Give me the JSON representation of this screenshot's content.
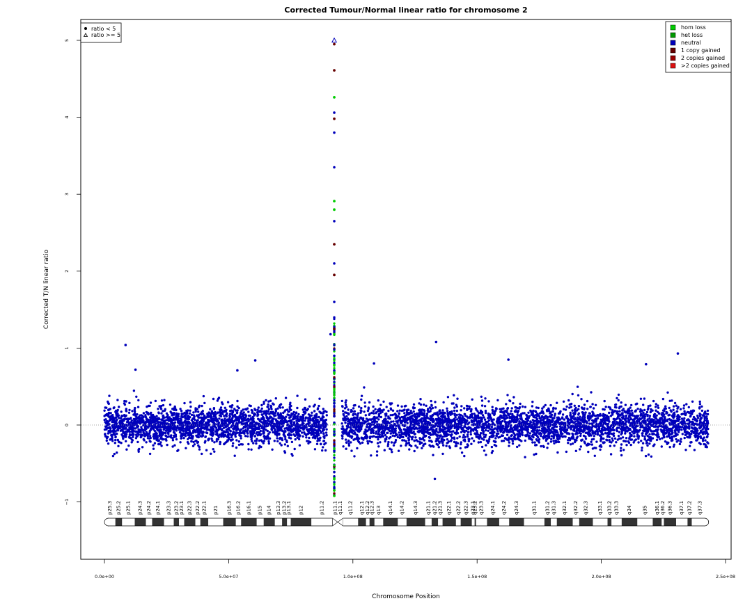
{
  "chart_data": {
    "type": "scatter",
    "title": "Corrected Tumour/Normal linear ratio for chromosome  2",
    "xlabel": "Chromosome Position",
    "ylabel": "Corrected T/N linear ratio",
    "xlim": [
      0,
      250000000
    ],
    "ylim": [
      -1.75,
      5.25
    ],
    "x_ticks": [
      0,
      50000000,
      100000000,
      150000000,
      200000000,
      250000000
    ],
    "x_tick_labels": [
      "0.0e+00",
      "5.0e+07",
      "1.0e+08",
      "1.5e+08",
      "2.0e+08",
      "2.5e+08"
    ],
    "y_ticks": [
      -1,
      0,
      1,
      2,
      3,
      4,
      5
    ],
    "y_tick_labels": [
      "−1",
      "0",
      "1",
      "2",
      "3",
      "4",
      "5"
    ],
    "reference_line_y": 0,
    "shape_legend": {
      "position": "top-left",
      "entries": [
        {
          "label": "ratio < 5",
          "symbol": "filled-circle"
        },
        {
          "label": "ratio >= 5",
          "symbol": "open-triangle"
        }
      ]
    },
    "color_legend": {
      "position": "top-right",
      "entries": [
        {
          "label": "hom loss",
          "color": "#00cc00"
        },
        {
          "label": "het loss",
          "color": "#009900"
        },
        {
          "label": "neutral",
          "color": "#0000bb"
        },
        {
          "label": "1 copy gained",
          "color": "#660000"
        },
        {
          "label": "2 copies gained",
          "color": "#990000"
        },
        {
          "label": ">2 copies gained",
          "color": "#dd1111"
        }
      ]
    },
    "series": [
      {
        "name": "neutral",
        "color": "#0000bb",
        "description_range": {
          "x": [
            0,
            243000000
          ],
          "y_core": [
            -0.35,
            0.4
          ],
          "y_extremes": [
            -0.7,
            1.09
          ]
        },
        "outliers": [
          {
            "x": 8500000,
            "y": 1.04
          },
          {
            "x": 133500000,
            "y": 1.08
          },
          {
            "x": 230800000,
            "y": 0.93
          },
          {
            "x": 60700000,
            "y": 0.84
          },
          {
            "x": 162600000,
            "y": 0.85
          },
          {
            "x": 53500000,
            "y": 0.71
          },
          {
            "x": 12500000,
            "y": 0.72
          },
          {
            "x": 108500000,
            "y": 0.8
          },
          {
            "x": 133000000,
            "y": -0.7
          },
          {
            "x": 218000000,
            "y": 0.79
          },
          {
            "x": 91000000,
            "y": 1.18
          },
          {
            "x": 92500000,
            "y": 4.06
          },
          {
            "x": 92500000,
            "y": 3.8
          },
          {
            "x": 92500000,
            "y": 3.35
          },
          {
            "x": 92500000,
            "y": 2.65
          },
          {
            "x": 92500000,
            "y": 2.1
          },
          {
            "x": 92500000,
            "y": 1.6
          },
          {
            "x": 92500000,
            "y": 0.9
          }
        ]
      },
      {
        "name": "hom loss",
        "color": "#00cc00",
        "points": [
          {
            "x": 92500000,
            "y": 4.26
          },
          {
            "x": 92500000,
            "y": 2.91
          },
          {
            "x": 92500000,
            "y": 2.8
          },
          {
            "x": 92500000,
            "y": -0.92
          },
          {
            "x": 92500000,
            "y": -0.85
          },
          {
            "x": 92500000,
            "y": -0.7
          }
        ]
      },
      {
        "name": "1 copy gained",
        "color": "#660000",
        "points": [
          {
            "x": 92500000,
            "y": 4.95
          },
          {
            "x": 92500000,
            "y": 4.61
          },
          {
            "x": 92500000,
            "y": 3.98
          },
          {
            "x": 92500000,
            "y": 2.35
          },
          {
            "x": 92500000,
            "y": 1.95
          },
          {
            "x": 92500000,
            "y": 1.25
          }
        ]
      },
      {
        "name": "ratio >= 5",
        "color": "#0000bb",
        "marker": "open-triangle",
        "points": [
          {
            "x": 92500000,
            "y": 5.0
          }
        ]
      }
    ],
    "ideogram": {
      "chromosome": "2",
      "bands": [
        {
          "name": "p25.3",
          "start": 0,
          "end": 4400000,
          "stain": "gneg"
        },
        {
          "name": "p25.2",
          "start": 4400000,
          "end": 7100000,
          "stain": "gpos"
        },
        {
          "name": "p25.1",
          "start": 7100000,
          "end": 12200000,
          "stain": "gneg"
        },
        {
          "name": "p24.3",
          "start": 12200000,
          "end": 16700000,
          "stain": "gpos"
        },
        {
          "name": "p24.2",
          "start": 16700000,
          "end": 19200000,
          "stain": "gneg"
        },
        {
          "name": "p24.1",
          "start": 19200000,
          "end": 24000000,
          "stain": "gpos"
        },
        {
          "name": "p23.3",
          "start": 24000000,
          "end": 27900000,
          "stain": "gneg"
        },
        {
          "name": "p23.2",
          "start": 27900000,
          "end": 30000000,
          "stain": "gpos"
        },
        {
          "name": "p23.1",
          "start": 30000000,
          "end": 32100000,
          "stain": "gneg"
        },
        {
          "name": "p22.3",
          "start": 32100000,
          "end": 36600000,
          "stain": "gpos"
        },
        {
          "name": "p22.2",
          "start": 36600000,
          "end": 38600000,
          "stain": "gneg"
        },
        {
          "name": "p22.1",
          "start": 38600000,
          "end": 41800000,
          "stain": "gpos"
        },
        {
          "name": "p21",
          "start": 41800000,
          "end": 47800000,
          "stain": "gneg"
        },
        {
          "name": "p16.3",
          "start": 47800000,
          "end": 52900000,
          "stain": "gpos"
        },
        {
          "name": "p16.2",
          "start": 52900000,
          "end": 55000000,
          "stain": "gneg"
        },
        {
          "name": "p16.1",
          "start": 55000000,
          "end": 61300000,
          "stain": "gpos"
        },
        {
          "name": "p15",
          "start": 61300000,
          "end": 64100000,
          "stain": "gneg"
        },
        {
          "name": "p14",
          "start": 64100000,
          "end": 68600000,
          "stain": "gpos"
        },
        {
          "name": "p13.3",
          "start": 68600000,
          "end": 71500000,
          "stain": "gneg"
        },
        {
          "name": "p13.2",
          "start": 71500000,
          "end": 73500000,
          "stain": "gpos"
        },
        {
          "name": "p13.1",
          "start": 73500000,
          "end": 75000000,
          "stain": "gneg"
        },
        {
          "name": "p12",
          "start": 75000000,
          "end": 83300000,
          "stain": "gpos"
        },
        {
          "name": "p11.2",
          "start": 83300000,
          "end": 91800000,
          "stain": "gneg"
        },
        {
          "name": "p11.1",
          "start": 91800000,
          "end": 93900000,
          "stain": "acen"
        },
        {
          "name": "q11.1",
          "start": 93900000,
          "end": 96000000,
          "stain": "acen"
        },
        {
          "name": "q11.2",
          "start": 96000000,
          "end": 102100000,
          "stain": "gneg"
        },
        {
          "name": "q12.1",
          "start": 102100000,
          "end": 105300000,
          "stain": "gpos"
        },
        {
          "name": "q12.2",
          "start": 105300000,
          "end": 106700000,
          "stain": "gneg"
        },
        {
          "name": "q12.3",
          "start": 106700000,
          "end": 108700000,
          "stain": "gpos"
        },
        {
          "name": "q13",
          "start": 108700000,
          "end": 112200000,
          "stain": "gneg"
        },
        {
          "name": "q14.1",
          "start": 112200000,
          "end": 118100000,
          "stain": "gpos"
        },
        {
          "name": "q14.2",
          "start": 118100000,
          "end": 121600000,
          "stain": "gneg"
        },
        {
          "name": "q14.3",
          "start": 121600000,
          "end": 129100000,
          "stain": "gpos"
        },
        {
          "name": "q21.1",
          "start": 129100000,
          "end": 131700000,
          "stain": "gneg"
        },
        {
          "name": "q21.2",
          "start": 131700000,
          "end": 134300000,
          "stain": "gpos"
        },
        {
          "name": "q21.3",
          "start": 134300000,
          "end": 136100000,
          "stain": "gneg"
        },
        {
          "name": "q22.1",
          "start": 136100000,
          "end": 141500000,
          "stain": "gpos"
        },
        {
          "name": "q22.2",
          "start": 141500000,
          "end": 143400000,
          "stain": "gneg"
        },
        {
          "name": "q22.3",
          "start": 143400000,
          "end": 147900000,
          "stain": "gpos"
        },
        {
          "name": "q23.1",
          "start": 147900000,
          "end": 149000000,
          "stain": "gneg"
        },
        {
          "name": "q23.2",
          "start": 149000000,
          "end": 149600000,
          "stain": "gpos"
        },
        {
          "name": "q23.3",
          "start": 149600000,
          "end": 154000000,
          "stain": "gneg"
        },
        {
          "name": "q24.1",
          "start": 154000000,
          "end": 158900000,
          "stain": "gpos"
        },
        {
          "name": "q24.2",
          "start": 158900000,
          "end": 162900000,
          "stain": "gneg"
        },
        {
          "name": "q24.3",
          "start": 162900000,
          "end": 168900000,
          "stain": "gpos"
        },
        {
          "name": "q31.1",
          "start": 168900000,
          "end": 177100000,
          "stain": "gneg"
        },
        {
          "name": "q31.2",
          "start": 177100000,
          "end": 179700000,
          "stain": "gpos"
        },
        {
          "name": "q31.3",
          "start": 179700000,
          "end": 182100000,
          "stain": "gneg"
        },
        {
          "name": "q32.1",
          "start": 182100000,
          "end": 188500000,
          "stain": "gpos"
        },
        {
          "name": "q32.2",
          "start": 188500000,
          "end": 191100000,
          "stain": "gneg"
        },
        {
          "name": "q32.3",
          "start": 191100000,
          "end": 196600000,
          "stain": "gpos"
        },
        {
          "name": "q33.1",
          "start": 196600000,
          "end": 202500000,
          "stain": "gneg"
        },
        {
          "name": "q33.2",
          "start": 202500000,
          "end": 204100000,
          "stain": "gpos"
        },
        {
          "name": "q33.3",
          "start": 204100000,
          "end": 208200000,
          "stain": "gneg"
        },
        {
          "name": "q34",
          "start": 208200000,
          "end": 214500000,
          "stain": "gpos"
        },
        {
          "name": "q35",
          "start": 214500000,
          "end": 220700000,
          "stain": "gneg"
        },
        {
          "name": "q36.1",
          "start": 220700000,
          "end": 224300000,
          "stain": "gpos"
        },
        {
          "name": "q36.2",
          "start": 224300000,
          "end": 225200000,
          "stain": "gneg"
        },
        {
          "name": "q36.3",
          "start": 225200000,
          "end": 230100000,
          "stain": "gpos"
        },
        {
          "name": "q37.1",
          "start": 230100000,
          "end": 234700000,
          "stain": "gneg"
        },
        {
          "name": "q37.2",
          "start": 234700000,
          "end": 236400000,
          "stain": "gpos"
        },
        {
          "name": "q37.3",
          "start": 236400000,
          "end": 243200000,
          "stain": "gneg"
        }
      ]
    }
  }
}
